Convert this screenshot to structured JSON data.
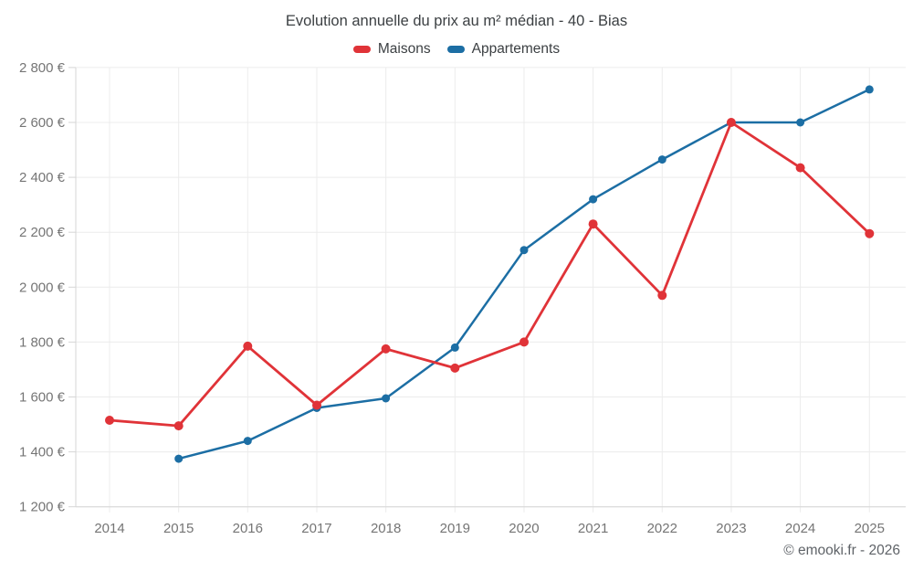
{
  "title": "Evolution annuelle du prix au m² médian - 40 - Bias",
  "legend": {
    "items": [
      {
        "label": "Maisons",
        "color": "#e03338"
      },
      {
        "label": "Appartements",
        "color": "#1c6ea4"
      }
    ]
  },
  "footer": {
    "credit": "© emooki.fr - 2026"
  },
  "chart_data": {
    "type": "line",
    "title": "Evolution annuelle du prix au m² médian - 40 - Bias",
    "x": [
      2014,
      2015,
      2016,
      2017,
      2018,
      2019,
      2020,
      2021,
      2022,
      2023,
      2024,
      2025
    ],
    "series": [
      {
        "name": "Maisons",
        "color": "#e03338",
        "values": [
          1515,
          1495,
          1785,
          1570,
          1775,
          1705,
          1800,
          2230,
          1970,
          2600,
          2435,
          2195
        ]
      },
      {
        "name": "Appartements",
        "color": "#1c6ea4",
        "values": [
          null,
          1375,
          1440,
          1560,
          1595,
          1780,
          2135,
          2320,
          2465,
          2600,
          2600,
          2720
        ]
      }
    ],
    "ylim": [
      1200,
      2800
    ],
    "ytick_step": 200,
    "yticks": [
      1200,
      1400,
      1600,
      1800,
      2000,
      2200,
      2400,
      2600,
      2800
    ],
    "ytick_labels": [
      "1 200 €",
      "1 400 €",
      "1 600 €",
      "1 800 €",
      "2 000 €",
      "2 200 €",
      "2 400 €",
      "2 600 €",
      "2 800 €"
    ],
    "xlabel": "",
    "ylabel": "",
    "grid": true,
    "legend_position": "top",
    "currency": "€"
  }
}
